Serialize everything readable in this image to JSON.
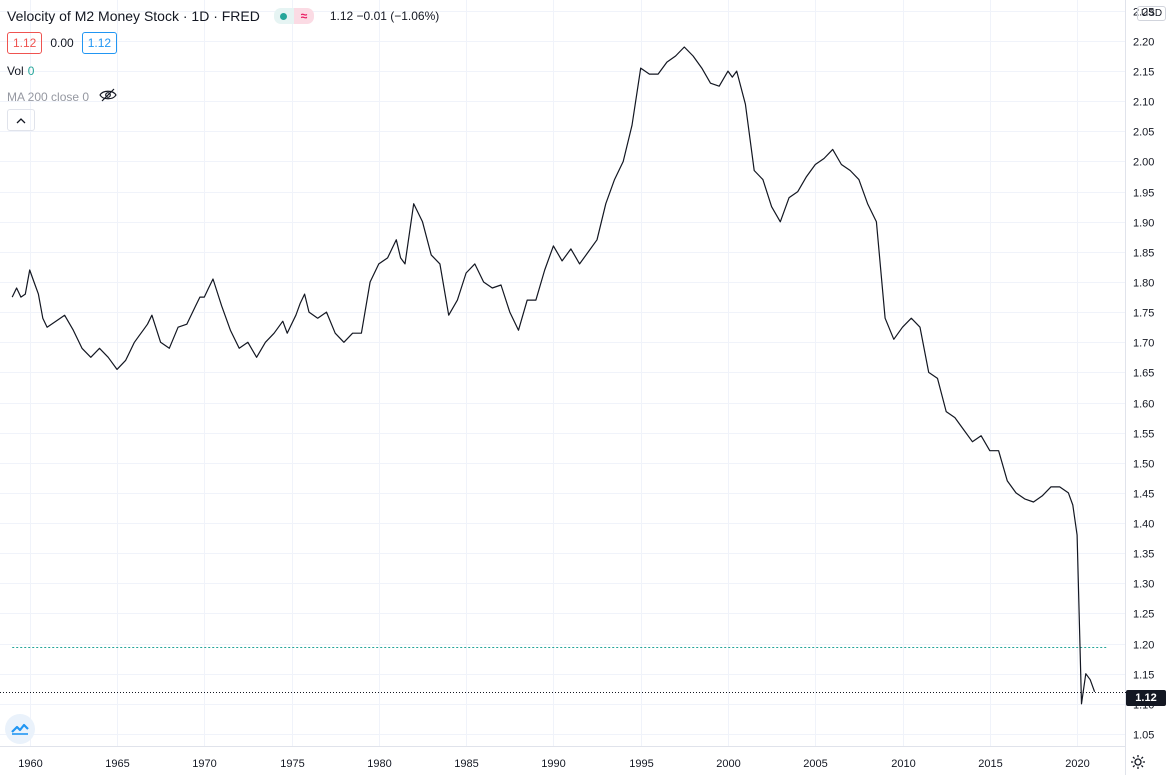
{
  "header": {
    "title": "Velocity of M2 Money Stock · 1D · FRED",
    "change": "1.12  −0.01 (−1.06%)",
    "wave_glyph": "≈"
  },
  "ohlc": {
    "bid": "1.12",
    "spread": "0.00",
    "ask": "1.12"
  },
  "indicators": {
    "vol_label": "Vol",
    "vol_value": "0",
    "ma_label": "MA 200 close 0"
  },
  "icons": {
    "status_dot": "status-dot-icon",
    "wave": "wave-icon",
    "eye_hidden": "eye-crossed-icon",
    "collapse": "chevron-up-icon",
    "logo": "tradingview-logo-icon",
    "settings": "gear-icon"
  },
  "price_axis": {
    "currency": "USD",
    "last_price": "1.12"
  },
  "colors": {
    "line": "#131722",
    "grid": "#f0f3fa",
    "ma_line": "#26a69a",
    "down": "#ef5350",
    "up": "#2196f3"
  },
  "chart_data": {
    "type": "line",
    "title": "Velocity of M2 Money Stock",
    "xlabel": "",
    "ylabel": "",
    "xlim": [
      1958.3,
      2022.8
    ],
    "ylim": [
      1.03,
      2.268
    ],
    "yticks": [
      2.25,
      2.2,
      2.15,
      2.1,
      2.05,
      2.0,
      1.95,
      1.9,
      1.85,
      1.8,
      1.75,
      1.7,
      1.65,
      1.6,
      1.55,
      1.5,
      1.45,
      1.4,
      1.35,
      1.3,
      1.25,
      1.2,
      1.15,
      1.1,
      1.05
    ],
    "xticks": [
      1960,
      1965,
      1970,
      1975,
      1980,
      1985,
      1990,
      1995,
      2000,
      2005,
      2010,
      2015,
      2020
    ],
    "ma_value": 1.195,
    "last_value": 1.12,
    "grid": true,
    "series": [
      {
        "x": [
          1959.0,
          1959.25,
          1959.5,
          1959.75,
          1960.0,
          1960.25,
          1960.5,
          1960.75,
          1961.0,
          1961.5,
          1962.0,
          1962.5,
          1963.0,
          1963.5,
          1964.0,
          1964.5,
          1965.0,
          1965.5,
          1966.0,
          1966.25,
          1966.5,
          1966.75,
          1967.0,
          1967.5,
          1968.0,
          1968.5,
          1969.0,
          1969.5,
          1969.75,
          1970.0,
          1970.25,
          1970.5,
          1971.0,
          1971.5,
          1972.0,
          1972.5,
          1973.0,
          1973.5,
          1974.0,
          1974.5,
          1974.75,
          1975.0,
          1975.25,
          1975.5,
          1975.75,
          1976.0,
          1976.5,
          1977.0,
          1977.5,
          1978.0,
          1978.5,
          1979.0,
          1979.5,
          1980.0,
          1980.5,
          1980.75,
          1981.0,
          1981.25,
          1981.5,
          1982.0,
          1982.5,
          1983.0,
          1983.5,
          1984.0,
          1984.5,
          1985.0,
          1985.5,
          1986.0,
          1986.5,
          1987.0,
          1987.5,
          1988.0,
          1988.5,
          1989.0,
          1989.5,
          1990.0,
          1990.5,
          1991.0,
          1991.5,
          1992.0,
          1992.5,
          1993.0,
          1993.5,
          1994.0,
          1994.5,
          1995.0,
          1995.5,
          1996.0,
          1996.5,
          1997.0,
          1997.5,
          1998.0,
          1998.5,
          1999.0,
          1999.5,
          2000.0,
          2000.25,
          2000.5,
          2001.0,
          2001.5,
          2002.0,
          2002.5,
          2003.0,
          2003.5,
          2004.0,
          2004.5,
          2005.0,
          2005.5,
          2006.0,
          2006.5,
          2007.0,
          2007.5,
          2008.0,
          2008.5,
          2009.0,
          2009.5,
          2010.0,
          2010.5,
          2011.0,
          2011.5,
          2012.0,
          2012.5,
          2013.0,
          2013.5,
          2014.0,
          2014.5,
          2015.0,
          2015.5,
          2016.0,
          2016.5,
          2017.0,
          2017.5,
          2018.0,
          2018.5,
          2019.0,
          2019.5,
          2019.75,
          2020.0,
          2020.25,
          2020.5,
          2020.75,
          2021.0
        ],
        "values": [
          1.775,
          1.79,
          1.775,
          1.78,
          1.82,
          1.8,
          1.78,
          1.74,
          1.725,
          1.735,
          1.745,
          1.72,
          1.69,
          1.675,
          1.69,
          1.675,
          1.655,
          1.67,
          1.7,
          1.71,
          1.72,
          1.73,
          1.745,
          1.7,
          1.69,
          1.725,
          1.73,
          1.76,
          1.775,
          1.775,
          1.79,
          1.805,
          1.76,
          1.72,
          1.69,
          1.7,
          1.675,
          1.7,
          1.715,
          1.735,
          1.715,
          1.73,
          1.745,
          1.765,
          1.78,
          1.75,
          1.74,
          1.75,
          1.715,
          1.7,
          1.715,
          1.715,
          1.8,
          1.83,
          1.84,
          1.855,
          1.87,
          1.84,
          1.83,
          1.93,
          1.9,
          1.845,
          1.83,
          1.745,
          1.77,
          1.815,
          1.83,
          1.8,
          1.79,
          1.795,
          1.75,
          1.72,
          1.77,
          1.77,
          1.82,
          1.86,
          1.835,
          1.855,
          1.83,
          1.85,
          1.87,
          1.93,
          1.97,
          2.0,
          2.06,
          2.155,
          2.145,
          2.145,
          2.165,
          2.175,
          2.19,
          2.175,
          2.155,
          2.13,
          2.125,
          2.15,
          2.14,
          2.15,
          2.095,
          1.985,
          1.97,
          1.925,
          1.9,
          1.94,
          1.95,
          1.975,
          1.995,
          2.005,
          2.02,
          1.995,
          1.985,
          1.97,
          1.93,
          1.9,
          1.74,
          1.705,
          1.725,
          1.74,
          1.725,
          1.65,
          1.64,
          1.585,
          1.575,
          1.555,
          1.535,
          1.545,
          1.52,
          1.52,
          1.47,
          1.45,
          1.44,
          1.435,
          1.445,
          1.46,
          1.46,
          1.45,
          1.43,
          1.38,
          1.1,
          1.15,
          1.14,
          1.12
        ]
      }
    ]
  }
}
